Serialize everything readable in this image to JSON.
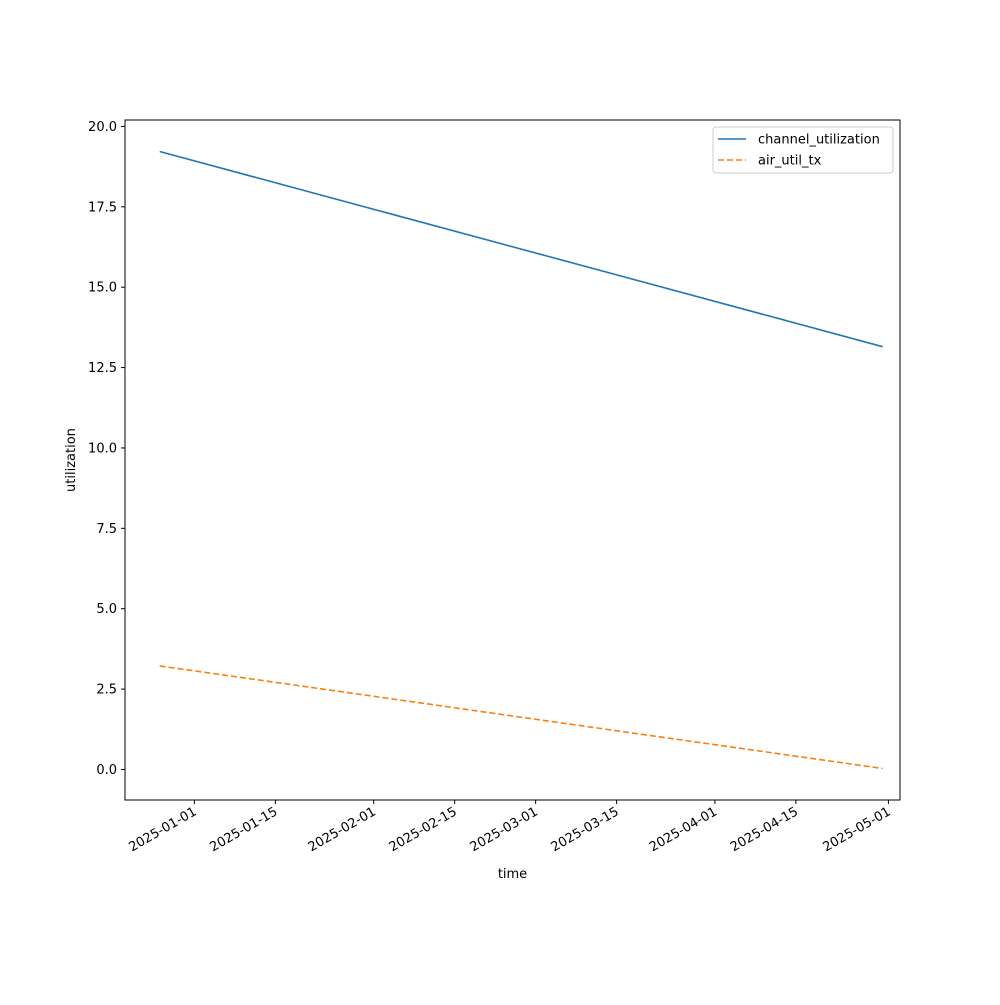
{
  "chart_data": {
    "type": "line",
    "title": "",
    "xlabel": "time",
    "ylabel": "utilization",
    "x_axis_type": "date",
    "xlim": [
      "2024-12-20",
      "2025-05-03"
    ],
    "ylim": [
      -0.95,
      20.2
    ],
    "x_ticks": [
      "2025-01-01",
      "2025-01-15",
      "2025-02-01",
      "2025-02-15",
      "2025-03-01",
      "2025-03-15",
      "2025-04-01",
      "2025-04-15",
      "2025-05-01"
    ],
    "y_ticks": [
      "0.0",
      "2.5",
      "5.0",
      "7.5",
      "10.0",
      "12.5",
      "15.0",
      "17.5",
      "20.0"
    ],
    "grid": false,
    "legend_position": "top-right",
    "series": [
      {
        "name": "channel_utilization",
        "color": "#1f77b4",
        "line_style": "solid",
        "x": [
          "2024-12-26",
          "2025-04-30"
        ],
        "y": [
          19.22,
          13.15
        ]
      },
      {
        "name": "air_util_tx",
        "color": "#ff7f0e",
        "line_style": "dashed",
        "x": [
          "2024-12-26",
          "2025-04-30"
        ],
        "y": [
          3.22,
          0.03
        ]
      }
    ]
  }
}
